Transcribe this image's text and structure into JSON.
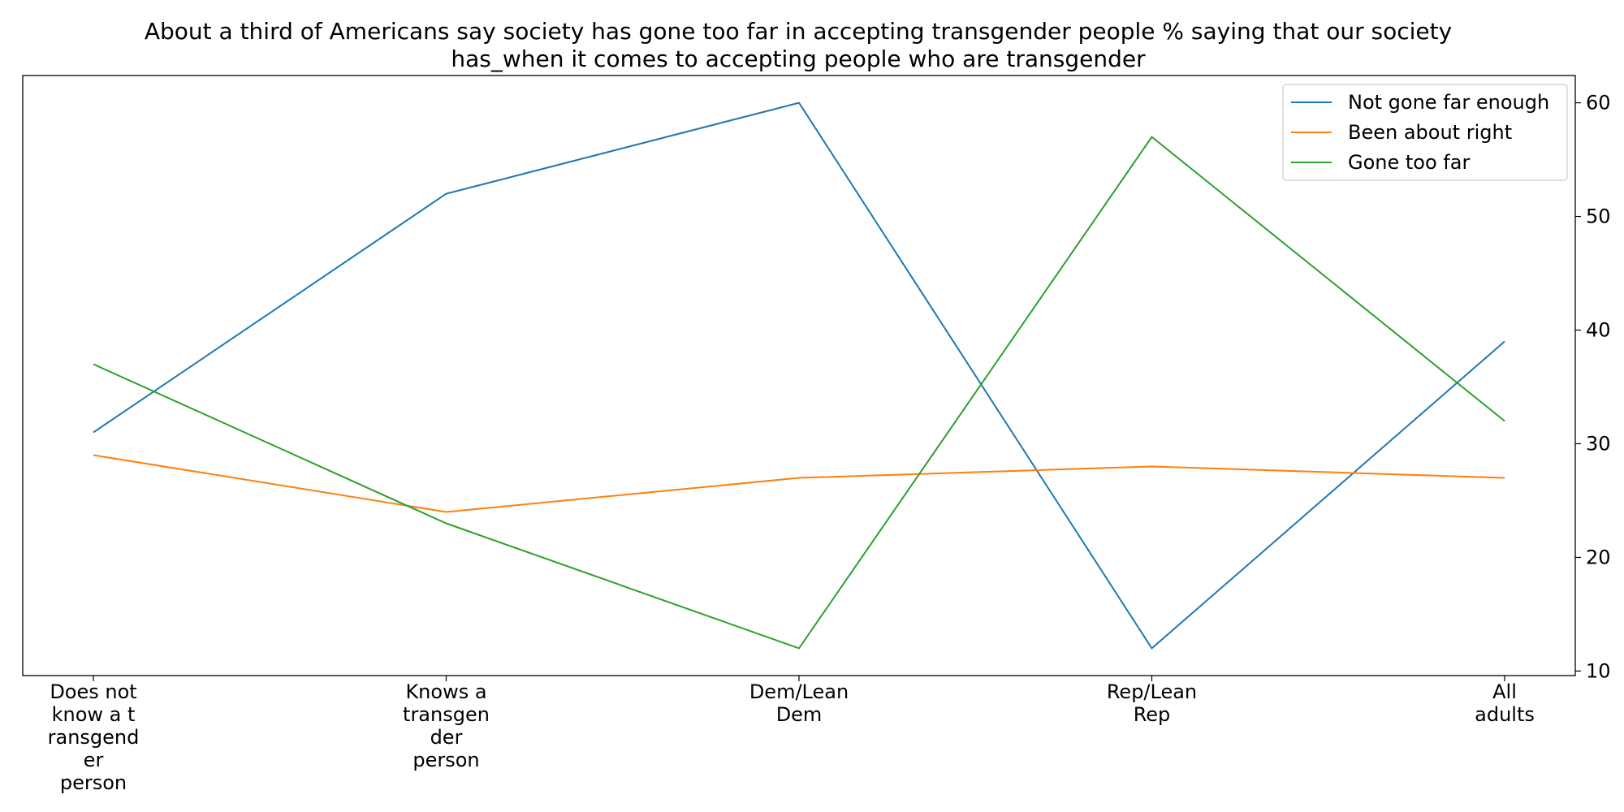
{
  "chart_data": {
    "type": "line",
    "title_lines": [
      "About a third of Americans say society has gone too far in accepting transgender people % saying that our society",
      "has_when it comes to accepting people who are transgender"
    ],
    "categories": [
      [
        "Does not",
        "know a t",
        "ransgend",
        "er",
        "person"
      ],
      [
        "Knows a",
        "transgen",
        "der",
        "person"
      ],
      [
        "Dem/Lean",
        "Dem"
      ],
      [
        "Rep/Lean",
        "Rep"
      ],
      [
        "All",
        "adults"
      ]
    ],
    "series": [
      {
        "name": "Not gone far enough",
        "color": "#1f77b4",
        "values": [
          31,
          52,
          60,
          12,
          39
        ]
      },
      {
        "name": "Been about right",
        "color": "#ff7f0e",
        "values": [
          29,
          24,
          27,
          28,
          27
        ]
      },
      {
        "name": "Gone too far",
        "color": "#2ca02c",
        "values": [
          37,
          23,
          12,
          57,
          32
        ]
      }
    ],
    "yaxis_position": "right",
    "ylim": [
      9.6,
      62.4
    ],
    "yticks": [
      10,
      20,
      30,
      40,
      50,
      60
    ],
    "grid": false,
    "legend_position": "top-right"
  }
}
